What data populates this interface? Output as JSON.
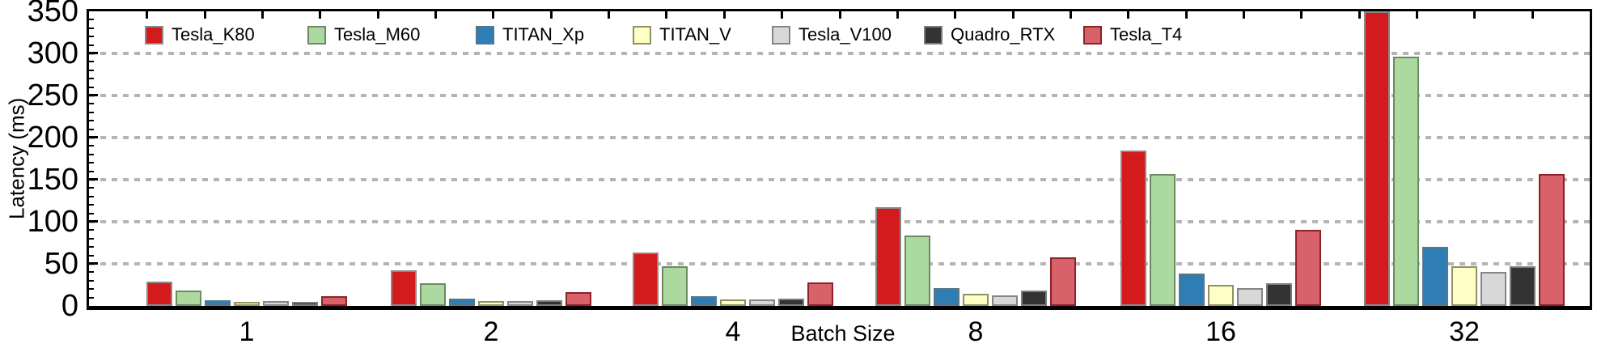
{
  "chart_data": {
    "type": "bar",
    "title": "",
    "xlabel": "Batch Size",
    "ylabel": "Latency (ms)",
    "categories": [
      "1",
      "2",
      "4",
      "8",
      "16",
      "32"
    ],
    "series": [
      {
        "name": "Tesla_K80",
        "color": "#d31b1d",
        "edge": "#8a8a8a",
        "values": [
          29,
          42,
          63,
          117,
          185,
          350
        ]
      },
      {
        "name": "Tesla_M60",
        "color": "#abd9a0",
        "edge": "#6b8a61",
        "values": [
          18,
          27,
          47,
          84,
          157,
          296
        ]
      },
      {
        "name": "TITAN_Xp",
        "color": "#2e7db5",
        "edge": "#5a7586",
        "values": [
          7,
          9,
          12,
          21,
          38,
          70
        ]
      },
      {
        "name": "TITAN_V",
        "color": "#feffc6",
        "edge": "#90915f",
        "values": [
          5,
          6,
          8,
          14,
          25,
          47
        ]
      },
      {
        "name": "Tesla_V100",
        "color": "#d8d8d8",
        "edge": "#858585",
        "values": [
          5.5,
          6,
          8,
          12.5,
          21,
          40
        ]
      },
      {
        "name": "Quadro_RTX",
        "color": "#333333",
        "edge": "#7d7d7d",
        "values": [
          4.5,
          6.5,
          8.5,
          18,
          27,
          47
        ]
      },
      {
        "name": "Tesla_T4",
        "color": "#d9616a",
        "edge": "#8c2127",
        "values": [
          12,
          16.5,
          28,
          58,
          90,
          157
        ]
      }
    ],
    "ylim": [
      0,
      350
    ],
    "yticks": [
      0,
      50,
      100,
      150,
      200,
      250,
      300,
      350
    ],
    "grid": "horizontal dashed gray lines at 50-300",
    "legend_position": "top inside, single row",
    "notes": "Tesla_K80 bar at batch size 32 reaches/clips at the 350 ms top of the axis"
  },
  "colors": {
    "background": "#ffffff",
    "axis": "#000000",
    "gridline": "#b4b4b4",
    "text": "#000000"
  }
}
